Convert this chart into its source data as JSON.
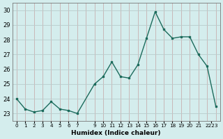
{
  "x": [
    0,
    1,
    2,
    3,
    4,
    5,
    6,
    7,
    9,
    10,
    11,
    12,
    13,
    14,
    15,
    16,
    17,
    18,
    19,
    20,
    21,
    22,
    23
  ],
  "y": [
    24.0,
    23.3,
    23.1,
    23.2,
    23.8,
    23.3,
    23.2,
    23.0,
    25.0,
    25.5,
    26.5,
    25.5,
    25.4,
    26.3,
    28.1,
    29.9,
    28.7,
    28.1,
    28.2,
    28.2,
    27.0,
    26.2,
    23.5
  ],
  "line_color": "#1c6b5c",
  "marker_color": "#1c6b5c",
  "bg_color": "#d4eded",
  "grid_color_v": "#c8b0b0",
  "grid_color_h": "#b8cccc",
  "xlabel": "Humidex (Indice chaleur)",
  "ylim": [
    22.5,
    30.5
  ],
  "yticks": [
    23,
    24,
    25,
    26,
    27,
    28,
    29,
    30
  ],
  "xlim": [
    -0.5,
    23.5
  ],
  "xtick_positions": [
    0,
    1,
    2,
    3,
    4,
    5,
    6,
    7,
    9,
    10,
    11,
    12,
    13,
    14,
    15,
    16,
    17,
    18,
    19,
    20,
    21,
    22.5
  ],
  "xtick_labels": [
    "0",
    "1",
    "2",
    "3",
    "4",
    "5",
    "6",
    "7",
    "9",
    "10",
    "11",
    "12",
    "13",
    "14",
    "15",
    "16",
    "17",
    "18",
    "19",
    "20",
    "21",
    "2223"
  ]
}
